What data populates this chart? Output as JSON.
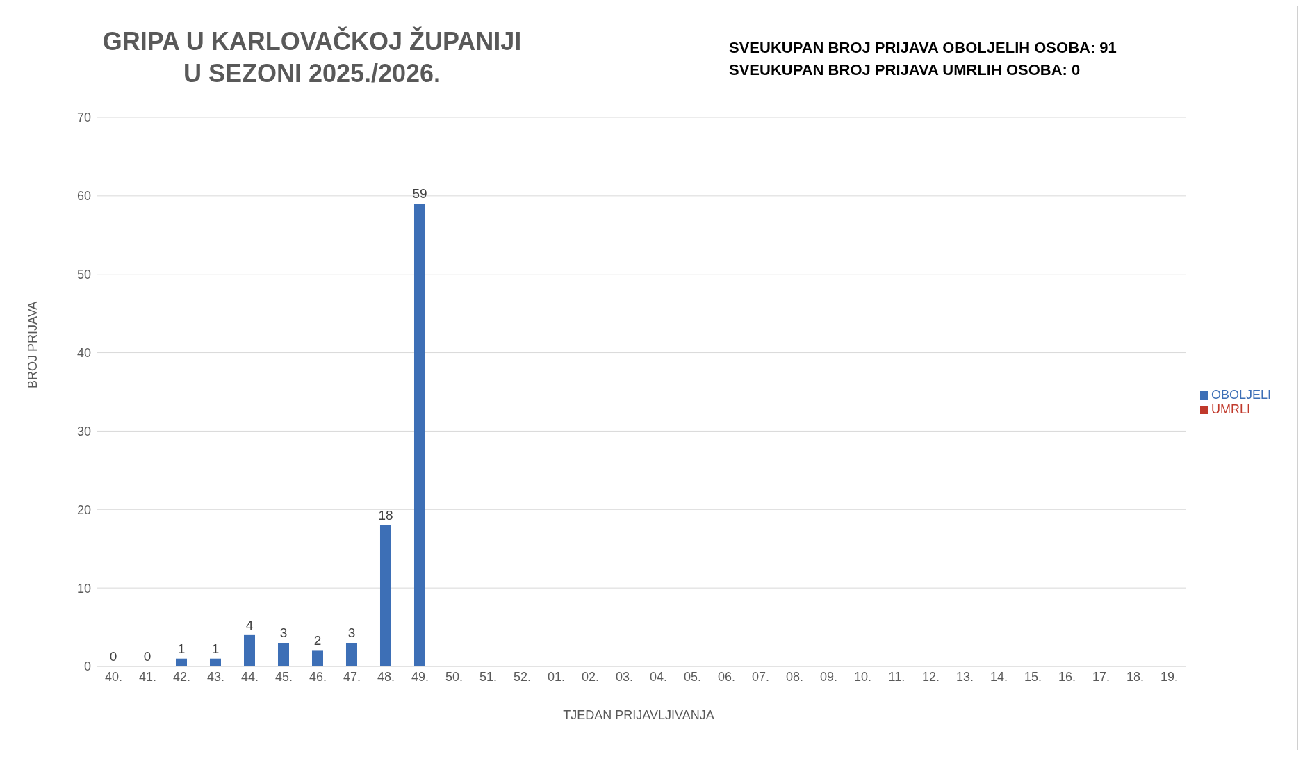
{
  "chart_data": {
    "type": "bar",
    "title": "GRIPA U KARLOVAČKOJ ŽUPANIJI\nU SEZONI 2025./2026.",
    "annotations": [
      "SVEUKUPAN BROJ PRIJAVA OBOLJELIH OSOBA: 91",
      "SVEUKUPAN BROJ PRIJAVA UMRLIH OSOBA: 0"
    ],
    "xlabel": "TJEDAN PRIJAVLJIVANJA",
    "ylabel": "BROJ PRIJAVA",
    "categories": [
      "40.",
      "41.",
      "42.",
      "43.",
      "44.",
      "45.",
      "46.",
      "47.",
      "48.",
      "49.",
      "50.",
      "51.",
      "52.",
      "01.",
      "02.",
      "03.",
      "04.",
      "05.",
      "06.",
      "07.",
      "08.",
      "09.",
      "10.",
      "11.",
      "12.",
      "13.",
      "14.",
      "15.",
      "16.",
      "17.",
      "18.",
      "19."
    ],
    "series": [
      {
        "name": "OBOLJELI",
        "color": "#3d6fb6",
        "values": [
          0,
          0,
          1,
          1,
          4,
          3,
          2,
          3,
          18,
          59,
          null,
          null,
          null,
          null,
          null,
          null,
          null,
          null,
          null,
          null,
          null,
          null,
          null,
          null,
          null,
          null,
          null,
          null,
          null,
          null,
          null,
          null
        ]
      },
      {
        "name": "UMRLI",
        "color": "#c0392b",
        "values": [
          null,
          null,
          null,
          null,
          null,
          null,
          null,
          null,
          null,
          null,
          null,
          null,
          null,
          null,
          null,
          null,
          null,
          null,
          null,
          null,
          null,
          null,
          null,
          null,
          null,
          null,
          null,
          null,
          null,
          null,
          null,
          null
        ]
      }
    ],
    "ylim": [
      0,
      70
    ],
    "yticks": [
      0,
      10,
      20,
      30,
      40,
      50,
      60,
      70
    ],
    "grid": "y",
    "legend": "right",
    "data_labels": true
  }
}
